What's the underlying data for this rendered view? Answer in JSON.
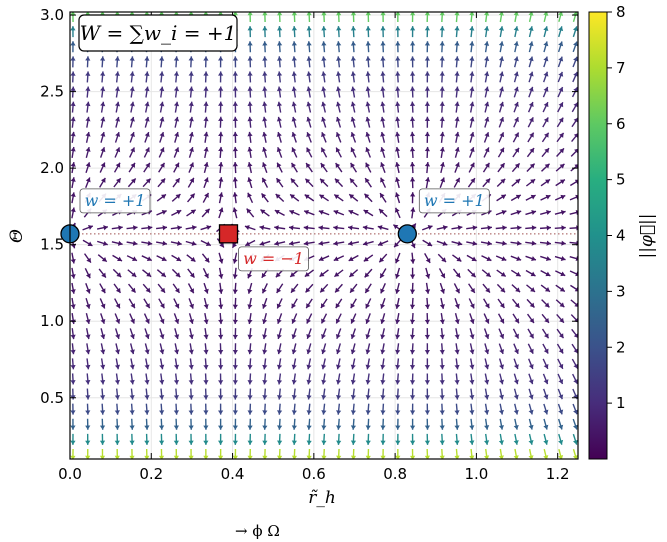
{
  "chart_data": {
    "type": "vector-field",
    "title": "W = ∑w_i = +1",
    "xlabel": "r̃_h",
    "ylabel": "Θ",
    "xlim": [
      0.0,
      1.25
    ],
    "ylim": [
      0.1,
      3.02
    ],
    "xticks": [
      "0.0",
      "0.2",
      "0.4",
      "0.6",
      "0.8",
      "1.0",
      "1.2"
    ],
    "yticks": [
      "0.5",
      "1.0",
      "1.5",
      "2.0",
      "2.5",
      "3.0"
    ],
    "grid": true,
    "colormap": "viridis",
    "colorbar": {
      "label": "||φ⃗||",
      "range": [
        0,
        8
      ],
      "ticks": [
        "1",
        "2",
        "3",
        "4",
        "5",
        "6",
        "7",
        "8"
      ]
    },
    "reference_line": {
      "y": 1.5708,
      "style": "dotted"
    },
    "defects": [
      {
        "x": 0.0,
        "y": 1.5708,
        "winding": "w = +1",
        "marker": "circle",
        "color": "#1f77b4"
      },
      {
        "x": 0.39,
        "y": 1.5708,
        "winding": "w = −1",
        "marker": "square",
        "color": "#d62728"
      },
      {
        "x": 0.83,
        "y": 1.5708,
        "winding": "w = +1",
        "marker": "circle",
        "color": "#1f77b4"
      }
    ],
    "grid_points": {
      "x_count": 35,
      "y_count": 30
    }
  },
  "caption": {
    "text": "→  ϕ  Ω"
  }
}
